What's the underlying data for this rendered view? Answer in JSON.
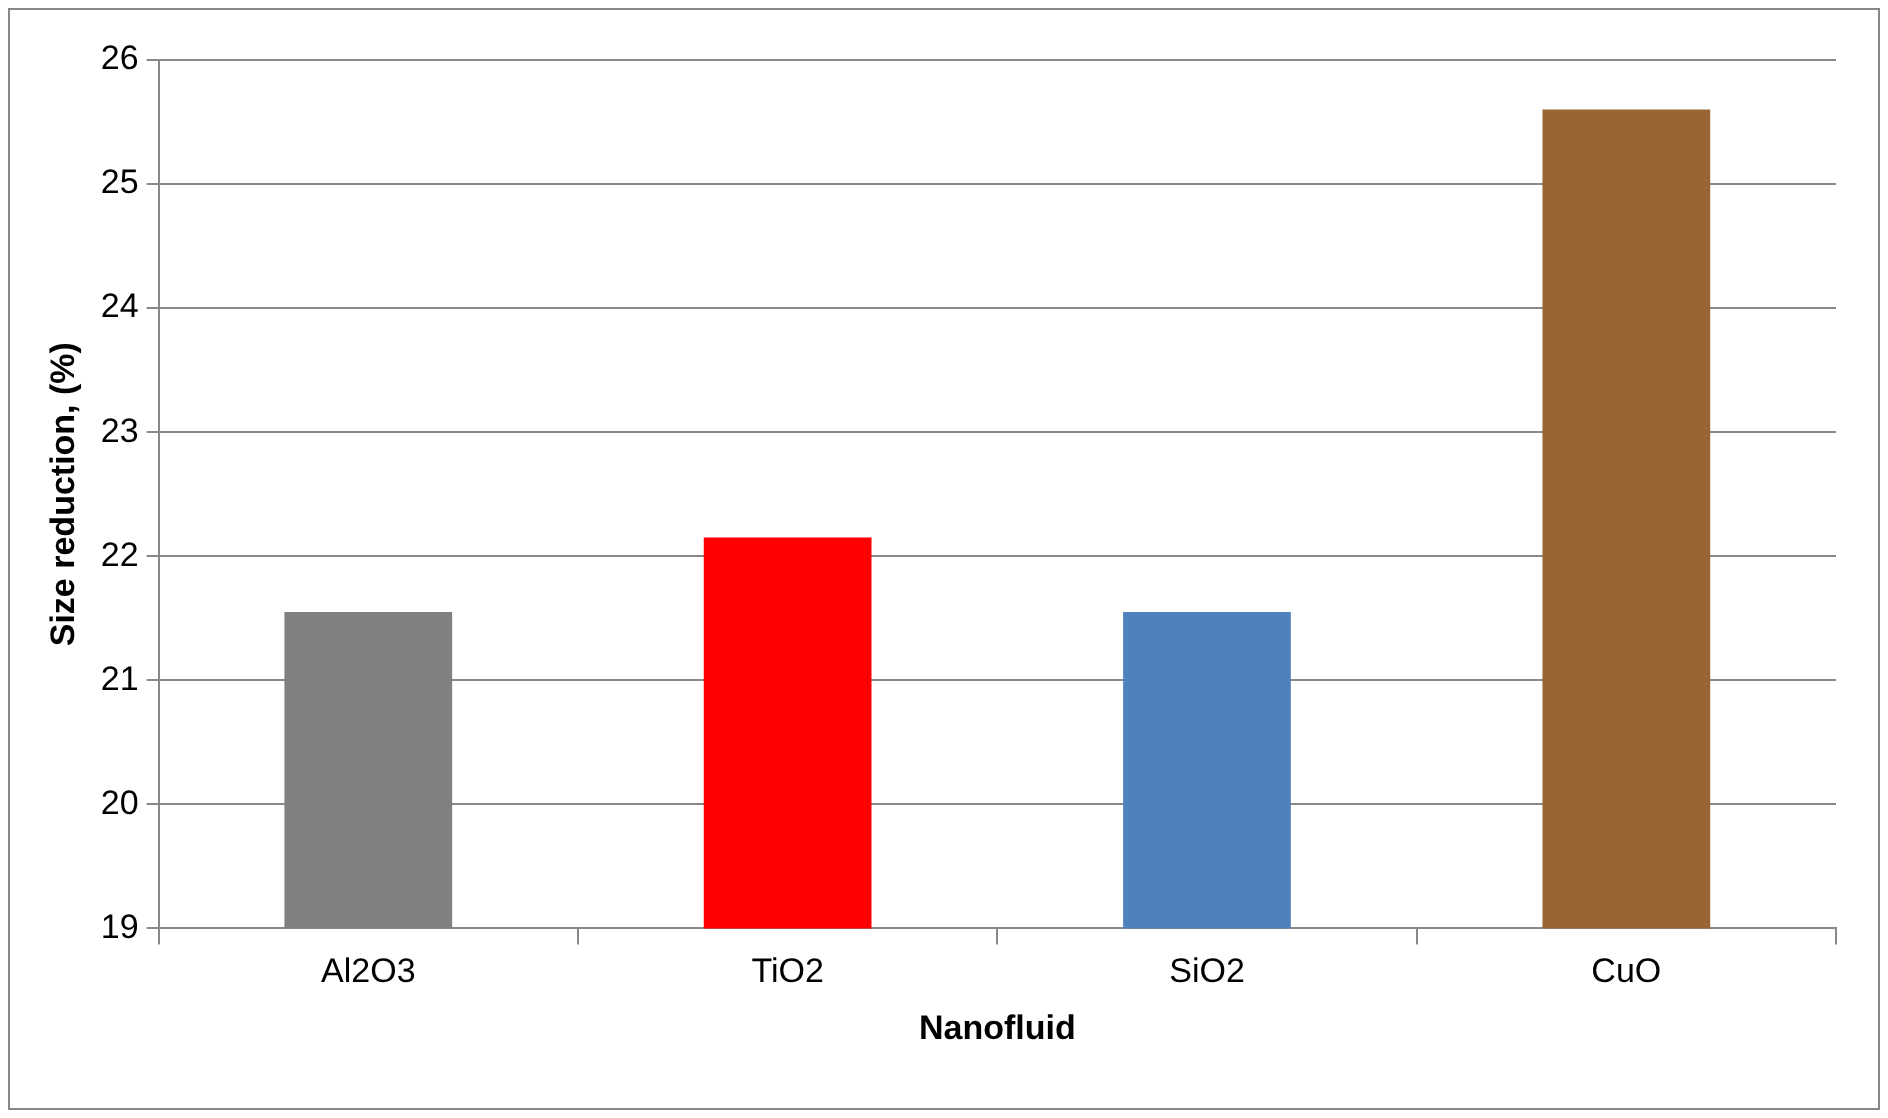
{
  "chart_data": {
    "type": "bar",
    "xlabel": "Nanofluid",
    "ylabel": "Size reduction, (%)",
    "categories": [
      "Al2O3",
      "TiO2",
      "SiO2",
      "CuO"
    ],
    "values": [
      21.55,
      22.15,
      21.55,
      25.6
    ],
    "colors": [
      "#808080",
      "#ff0000",
      "#4f81bd",
      "#996633"
    ],
    "ylim": [
      19,
      26
    ],
    "yticks": [
      19,
      20,
      21,
      22,
      23,
      24,
      25,
      26
    ],
    "grid": "y",
    "legend": false
  }
}
